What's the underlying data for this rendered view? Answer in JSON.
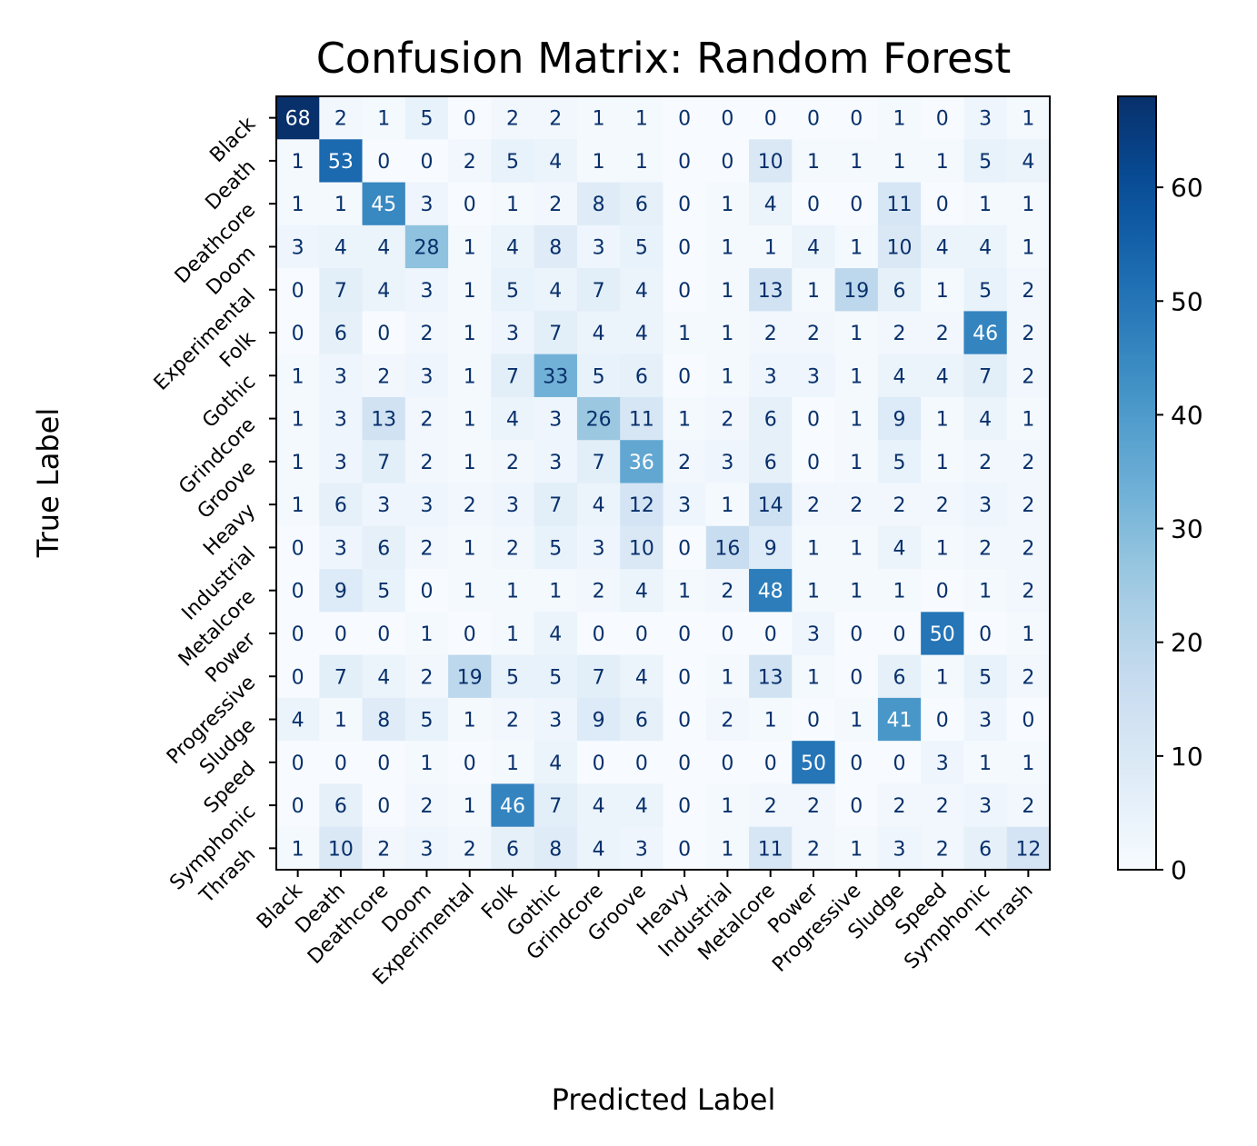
{
  "chart_data": {
    "type": "heatmap",
    "title": "Confusion Matrix: Random Forest",
    "xlabel": "Predicted Label",
    "ylabel": "True Label",
    "x_categories": [
      "Black",
      "Death",
      "Deathcore",
      "Doom",
      "Experimental",
      "Folk",
      "Gothic",
      "Grindcore",
      "Groove",
      "Heavy",
      "Industrial",
      "Metalcore",
      "Power",
      "Progressive",
      "Sludge",
      "Speed",
      "Symphonic",
      "Thrash"
    ],
    "y_categories": [
      "Black",
      "Death",
      "Deathcore",
      "Doom",
      "Experimental",
      "Folk",
      "Gothic",
      "Grindcore",
      "Groove",
      "Heavy",
      "Industrial",
      "Metalcore",
      "Power",
      "Progressive",
      "Sludge",
      "Speed",
      "Symphonic",
      "Thrash"
    ],
    "values": [
      [
        68,
        2,
        1,
        5,
        0,
        2,
        2,
        1,
        1,
        0,
        0,
        0,
        0,
        0,
        1,
        0,
        3,
        1
      ],
      [
        1,
        53,
        0,
        0,
        2,
        5,
        4,
        1,
        1,
        0,
        0,
        10,
        1,
        1,
        1,
        1,
        5,
        4
      ],
      [
        1,
        1,
        45,
        3,
        0,
        1,
        2,
        8,
        6,
        0,
        1,
        4,
        0,
        0,
        11,
        0,
        1,
        1
      ],
      [
        3,
        4,
        4,
        28,
        1,
        4,
        8,
        3,
        5,
        0,
        1,
        1,
        4,
        1,
        10,
        4,
        4,
        1
      ],
      [
        0,
        7,
        4,
        3,
        1,
        5,
        4,
        7,
        4,
        0,
        1,
        13,
        1,
        19,
        6,
        1,
        5,
        2
      ],
      [
        0,
        6,
        0,
        2,
        1,
        3,
        7,
        4,
        4,
        1,
        1,
        2,
        2,
        1,
        2,
        2,
        46,
        2
      ],
      [
        1,
        3,
        2,
        3,
        1,
        7,
        33,
        5,
        6,
        0,
        1,
        3,
        3,
        1,
        4,
        4,
        7,
        2
      ],
      [
        1,
        3,
        13,
        2,
        1,
        4,
        3,
        26,
        11,
        1,
        2,
        6,
        0,
        1,
        9,
        1,
        4,
        1
      ],
      [
        1,
        3,
        7,
        2,
        1,
        2,
        3,
        7,
        36,
        2,
        3,
        6,
        0,
        1,
        5,
        1,
        2,
        2
      ],
      [
        1,
        6,
        3,
        3,
        2,
        3,
        7,
        4,
        12,
        3,
        1,
        14,
        2,
        2,
        2,
        2,
        3,
        2
      ],
      [
        0,
        3,
        6,
        2,
        1,
        2,
        5,
        3,
        10,
        0,
        16,
        9,
        1,
        1,
        4,
        1,
        2,
        2
      ],
      [
        0,
        9,
        5,
        0,
        1,
        1,
        1,
        2,
        4,
        1,
        2,
        48,
        1,
        1,
        1,
        0,
        1,
        2
      ],
      [
        0,
        0,
        0,
        1,
        0,
        1,
        4,
        0,
        0,
        0,
        0,
        0,
        3,
        0,
        0,
        50,
        0,
        1
      ],
      [
        0,
        7,
        4,
        2,
        19,
        5,
        5,
        7,
        4,
        0,
        1,
        13,
        1,
        0,
        6,
        1,
        5,
        2
      ],
      [
        4,
        1,
        8,
        5,
        1,
        2,
        3,
        9,
        6,
        0,
        2,
        1,
        0,
        1,
        41,
        0,
        3,
        0
      ],
      [
        0,
        0,
        0,
        1,
        0,
        1,
        4,
        0,
        0,
        0,
        0,
        0,
        50,
        0,
        0,
        3,
        1,
        1
      ],
      [
        0,
        6,
        0,
        2,
        1,
        46,
        7,
        4,
        4,
        0,
        1,
        2,
        2,
        0,
        2,
        2,
        3,
        2
      ],
      [
        1,
        10,
        2,
        3,
        2,
        6,
        8,
        4,
        3,
        0,
        1,
        11,
        2,
        1,
        3,
        2,
        6,
        12
      ]
    ],
    "colormap": "Blues",
    "vmin": 0,
    "vmax": 68,
    "colorbar_ticks": [
      0,
      10,
      20,
      30,
      40,
      50,
      60
    ]
  }
}
